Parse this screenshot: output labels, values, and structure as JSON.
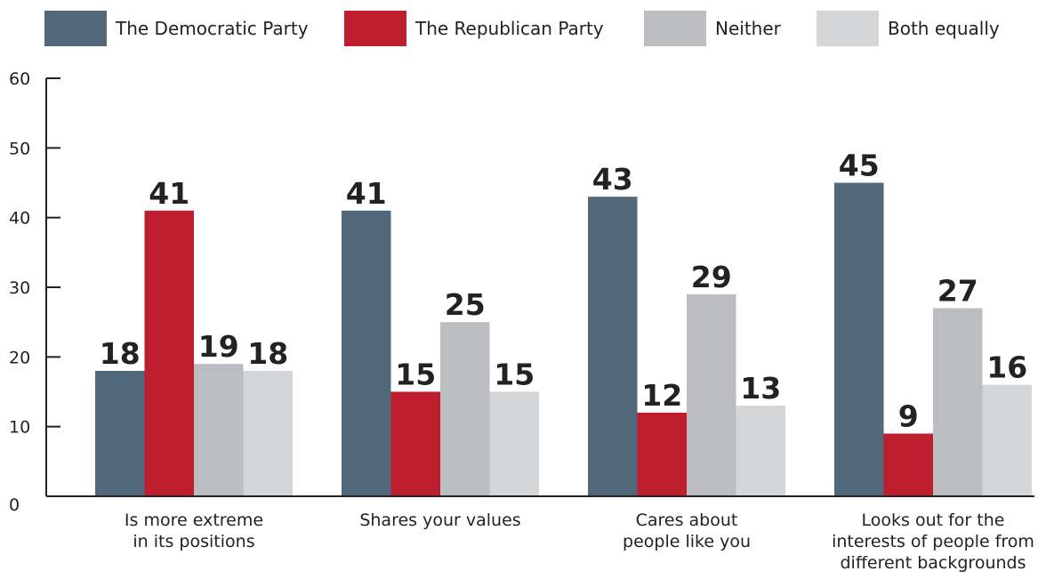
{
  "chart_data": {
    "type": "bar",
    "categories": [
      [
        "Is more extreme",
        "in its positions"
      ],
      [
        "Shares your values"
      ],
      [
        "Cares about",
        "people like you"
      ],
      [
        "Looks out for the",
        "interests of people from",
        "different backgrounds"
      ]
    ],
    "series": [
      {
        "name": "The Democratic Party",
        "color": "#51677a",
        "values": [
          18,
          41,
          43,
          45
        ]
      },
      {
        "name": "The Republican Party",
        "color": "#be1e2d",
        "values": [
          41,
          15,
          12,
          9
        ]
      },
      {
        "name": "Neither",
        "color": "#bcbdc1",
        "values": [
          19,
          25,
          29,
          27
        ]
      },
      {
        "name": "Both equally",
        "color": "#d4d5d7",
        "values": [
          18,
          15,
          13,
          16
        ]
      }
    ],
    "yticks": [
      0,
      10,
      20,
      30,
      40,
      50,
      60
    ],
    "ylim": [
      0,
      60
    ],
    "title": "",
    "xlabel": "",
    "ylabel": "",
    "legend_position": "top",
    "grid": false,
    "data_labels": true
  }
}
